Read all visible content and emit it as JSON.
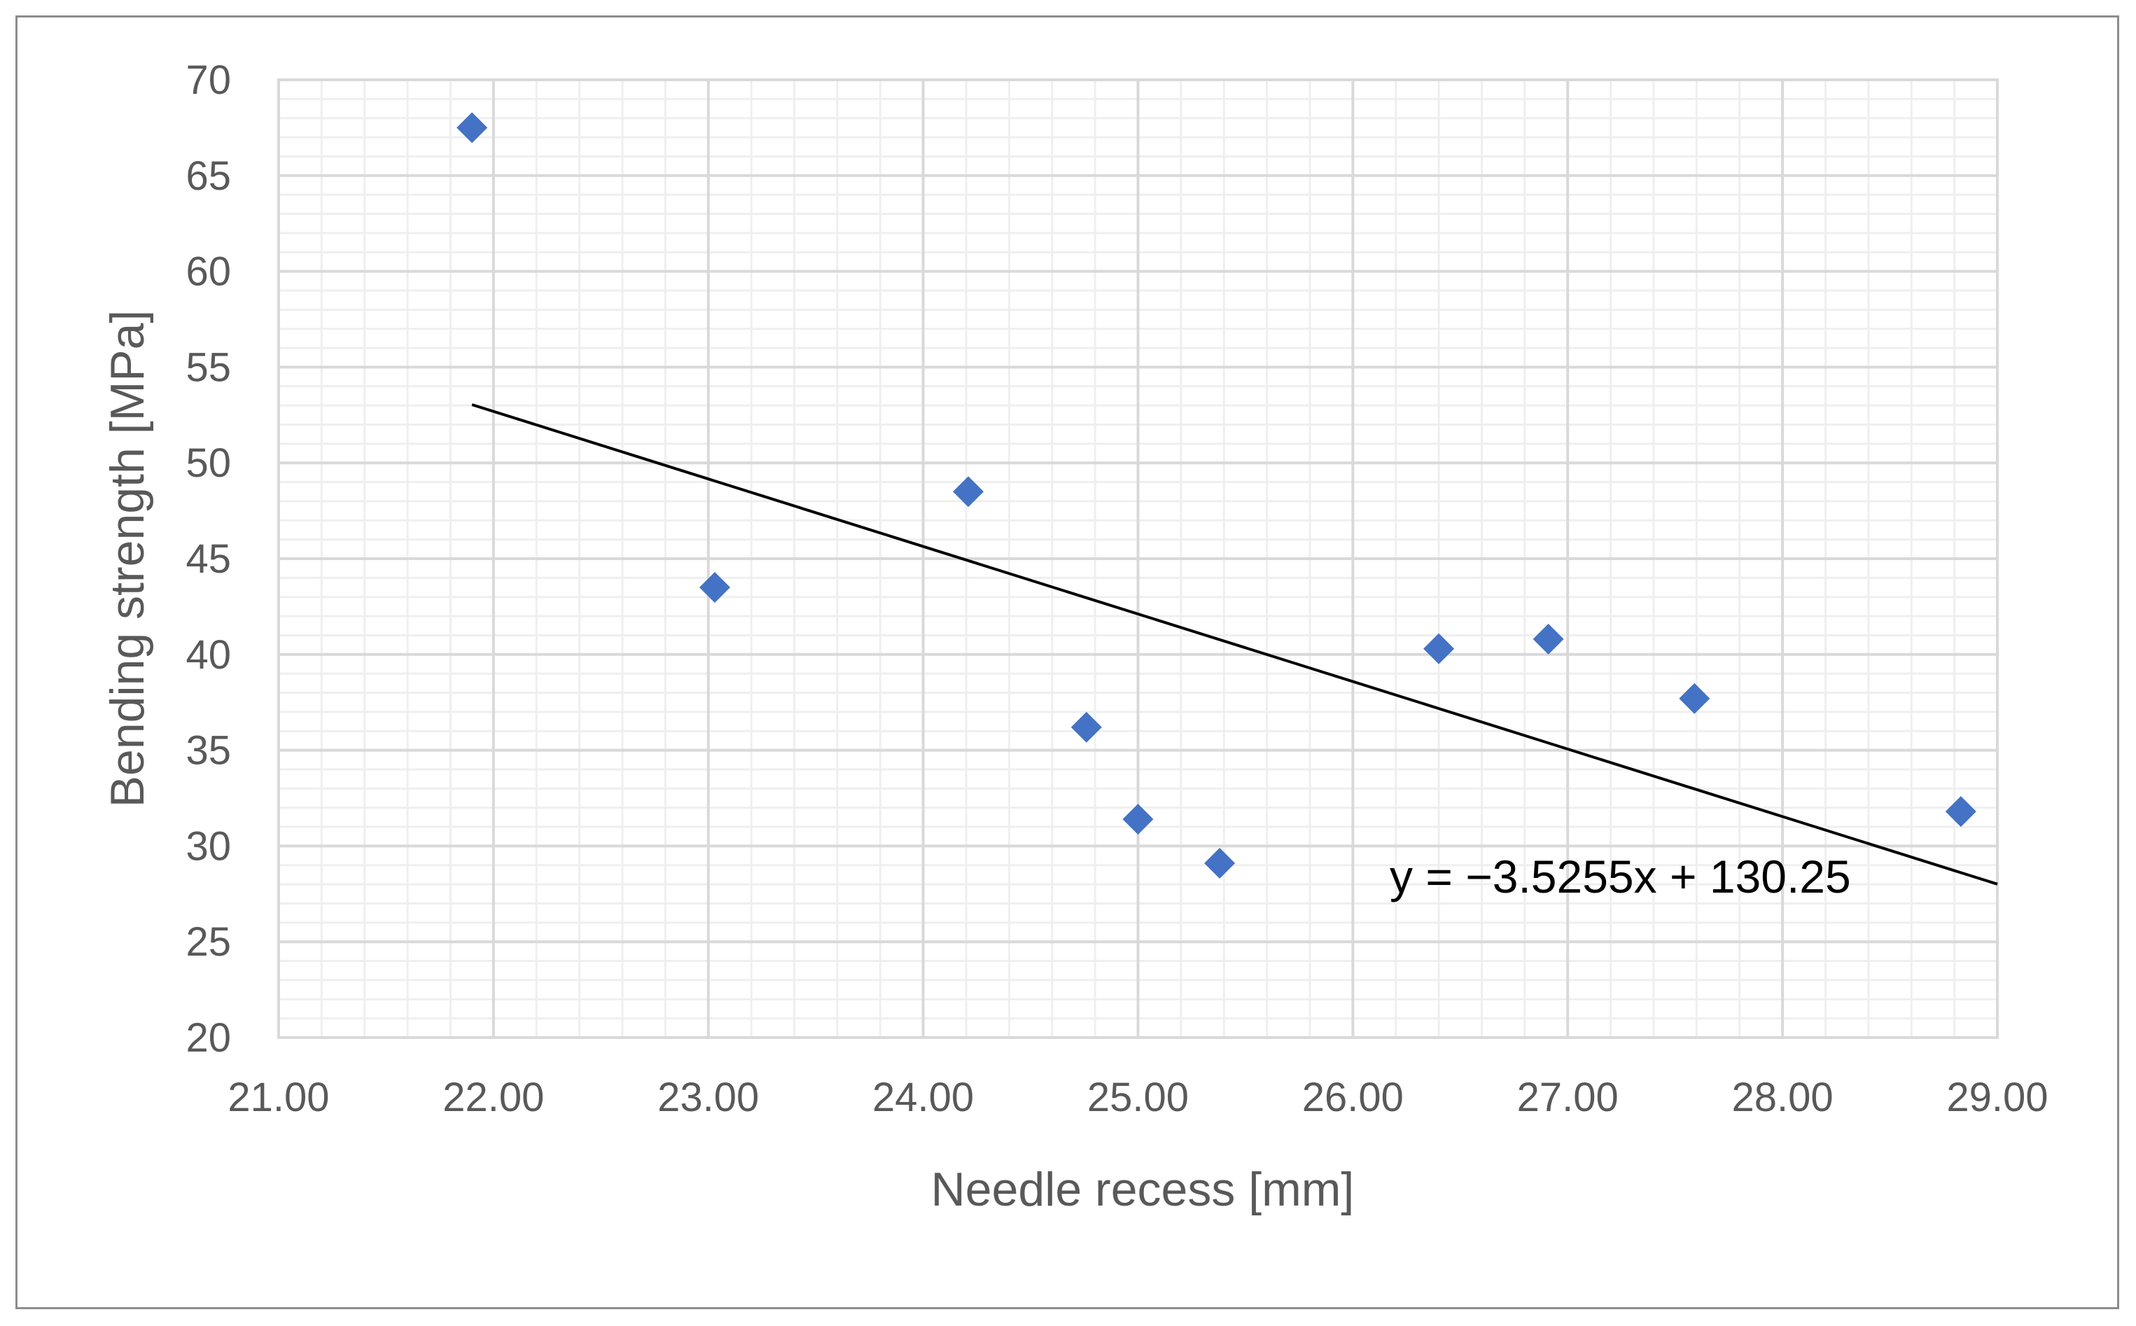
{
  "chart_data": {
    "type": "scatter",
    "title": "",
    "xlabel": "Needle recess [mm]",
    "ylabel": "Bending strength [MPa]",
    "xlim": [
      21,
      29
    ],
    "ylim": [
      20,
      70
    ],
    "x_major_step": 1,
    "x_minor_step": 0.2,
    "y_major_step": 5,
    "y_minor_step": 1,
    "x_tick_labels": [
      "21.00",
      "22.00",
      "23.00",
      "24.00",
      "25.00",
      "26.00",
      "27.00",
      "28.00",
      "29.00"
    ],
    "y_tick_labels": [
      "20",
      "25",
      "30",
      "35",
      "40",
      "45",
      "50",
      "55",
      "60",
      "65",
      "70"
    ],
    "series": [
      {
        "name": "Bending strength",
        "marker": "diamond",
        "color": "#4472C4",
        "points": [
          {
            "x": 21.9,
            "y": 67.5
          },
          {
            "x": 23.03,
            "y": 43.5
          },
          {
            "x": 24.21,
            "y": 48.5
          },
          {
            "x": 24.76,
            "y": 36.2
          },
          {
            "x": 25.0,
            "y": 31.4
          },
          {
            "x": 25.38,
            "y": 29.1
          },
          {
            "x": 26.4,
            "y": 40.3
          },
          {
            "x": 26.91,
            "y": 40.8
          },
          {
            "x": 27.59,
            "y": 37.7
          },
          {
            "x": 28.83,
            "y": 31.8
          }
        ]
      }
    ],
    "trendline": {
      "type": "linear",
      "slope": -3.5255,
      "intercept": 130.25,
      "x_start": 21.9,
      "x_end": 29.0,
      "color": "#000000",
      "equation_label": "y = −3.5255x + 130.25"
    },
    "colors": {
      "major_grid": "#d9d9d9",
      "minor_grid": "#efefef",
      "axis_text": "#595959",
      "frame": "#8c8c8c"
    }
  }
}
